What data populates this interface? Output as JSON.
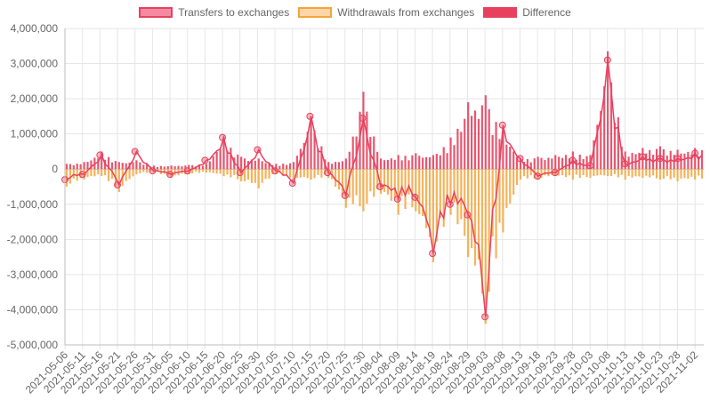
{
  "chart_data": {
    "type": "bar",
    "legend_position": "top-center",
    "grid": true,
    "ylim": [
      -5000000,
      4000000
    ],
    "y_ticks": [
      "4,000,000",
      "3,000,000",
      "2,000,000",
      "1,000,000",
      "0",
      "-1,000,000",
      "-2,000,000",
      "-3,000,000",
      "-4,000,000",
      "-5,000,000"
    ],
    "x_ticks": [
      "2021-05-06",
      "2021-05-11",
      "2021-05-16",
      "2021-05-21",
      "2021-05-26",
      "2021-05-31",
      "2021-06-05",
      "2021-06-10",
      "2021-06-15",
      "2021-06-20",
      "2021-06-25",
      "2021-06-30",
      "2021-07-05",
      "2021-07-10",
      "2021-07-15",
      "2021-07-20",
      "2021-07-25",
      "2021-07-30",
      "2021-08-04",
      "2021-08-09",
      "2021-08-14",
      "2021-08-19",
      "2021-08-24",
      "2021-08-29",
      "2021-09-03",
      "2021-09-08",
      "2021-09-13",
      "2021-09-18",
      "2021-09-23",
      "2021-09-28",
      "2021-10-03",
      "2021-10-08",
      "2021-10-13",
      "2021-10-18",
      "2021-10-23",
      "2021-10-28",
      "2021-11-02"
    ],
    "series": [
      {
        "name": "Transfers to exchanges",
        "color": "#f58ba0",
        "border": "#e8415f",
        "values_by_tick": [
          150000,
          200000,
          500000,
          200000,
          250000,
          100000,
          100000,
          120000,
          150000,
          900000,
          350000,
          300000,
          150000,
          200000,
          1500000,
          200000,
          300000,
          2200000,
          300000,
          400000,
          450000,
          400000,
          900000,
          1900000,
          2100000,
          1100000,
          300000,
          350000,
          400000,
          500000,
          400000,
          3350000,
          500000,
          600000,
          650000,
          550000,
          600000
        ]
      },
      {
        "name": "Withdrawals from exchanges",
        "color": "#ffd6a8",
        "border": "#f5a43c",
        "values_by_tick": [
          -500000,
          -300000,
          -200000,
          -650000,
          -150000,
          -100000,
          -250000,
          -150000,
          -100000,
          -200000,
          -350000,
          -550000,
          -150000,
          -300000,
          -300000,
          -250000,
          -1100000,
          -1200000,
          -700000,
          -1300000,
          -1200000,
          -2650000,
          -1300000,
          -2500000,
          -4400000,
          -1800000,
          -300000,
          -300000,
          -200000,
          -300000,
          -250000,
          -200000,
          -300000,
          -250000,
          -300000,
          -350000,
          -300000
        ]
      },
      {
        "name": "Difference",
        "color": "#e8415f",
        "border": "#e8415f",
        "values_by_tick": [
          -300000,
          -150000,
          400000,
          -450000,
          500000,
          -50000,
          -150000,
          -50000,
          250000,
          900000,
          -100000,
          550000,
          -50000,
          -400000,
          1500000,
          -100000,
          -750000,
          1450000,
          -500000,
          -850000,
          -800000,
          -2400000,
          -1000000,
          -1300000,
          -4200000,
          1250000,
          300000,
          -200000,
          -100000,
          250000,
          100000,
          3100000,
          150000,
          350000,
          300000,
          300000,
          450000
        ]
      }
    ]
  }
}
